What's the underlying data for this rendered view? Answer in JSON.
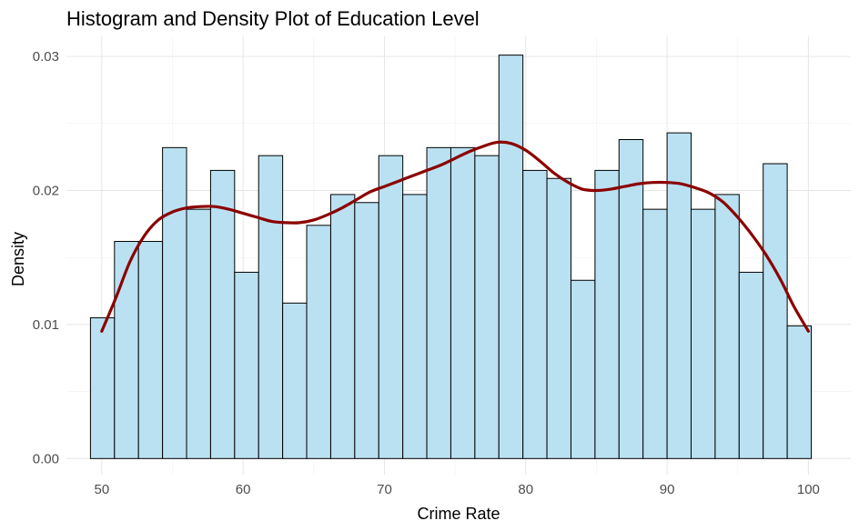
{
  "chart_data": {
    "type": "bar",
    "title": "Histogram and Density Plot of Education Level",
    "xlabel": "Crime Rate",
    "ylabel": "Density",
    "xlim": [
      47.5,
      103
    ],
    "ylim": [
      -0.0012,
      0.0315
    ],
    "x_ticks": [
      50,
      60,
      70,
      80,
      90,
      100
    ],
    "y_ticks": [
      0.0,
      0.01,
      0.02,
      0.03
    ],
    "x_tick_labels": [
      "50",
      "60",
      "70",
      "80",
      "90",
      "100"
    ],
    "y_tick_labels": [
      "0.00",
      "0.01",
      "0.02",
      "0.03"
    ],
    "grid": true,
    "legend": "none",
    "colors": {
      "bar_fill": "#bae1f2",
      "bar_outline": "#000000",
      "density_line": "#8b0000"
    },
    "series": [
      {
        "kind": "histogram",
        "bins": [
          {
            "x0": 49.2,
            "x1": 50.9,
            "value": 0.0105
          },
          {
            "x0": 50.9,
            "x1": 52.6,
            "value": 0.0162
          },
          {
            "x0": 52.6,
            "x1": 54.3,
            "value": 0.0162
          },
          {
            "x0": 54.3,
            "x1": 56.0,
            "value": 0.0232
          },
          {
            "x0": 56.0,
            "x1": 57.7,
            "value": 0.0186
          },
          {
            "x0": 57.7,
            "x1": 59.4,
            "value": 0.0215
          },
          {
            "x0": 59.4,
            "x1": 61.1,
            "value": 0.0139
          },
          {
            "x0": 61.1,
            "x1": 62.8,
            "value": 0.0226
          },
          {
            "x0": 62.8,
            "x1": 64.5,
            "value": 0.0116
          },
          {
            "x0": 64.5,
            "x1": 66.2,
            "value": 0.0174
          },
          {
            "x0": 66.2,
            "x1": 67.9,
            "value": 0.0197
          },
          {
            "x0": 67.9,
            "x1": 69.6,
            "value": 0.0191
          },
          {
            "x0": 69.6,
            "x1": 71.3,
            "value": 0.0226
          },
          {
            "x0": 71.3,
            "x1": 73.0,
            "value": 0.0197
          },
          {
            "x0": 73.0,
            "x1": 74.7,
            "value": 0.0232
          },
          {
            "x0": 74.7,
            "x1": 76.4,
            "value": 0.0232
          },
          {
            "x0": 76.4,
            "x1": 78.1,
            "value": 0.0226
          },
          {
            "x0": 78.1,
            "x1": 79.8,
            "value": 0.0301
          },
          {
            "x0": 79.8,
            "x1": 81.5,
            "value": 0.0215
          },
          {
            "x0": 81.5,
            "x1": 83.2,
            "value": 0.0209
          },
          {
            "x0": 83.2,
            "x1": 84.9,
            "value": 0.0133
          },
          {
            "x0": 84.9,
            "x1": 86.6,
            "value": 0.0215
          },
          {
            "x0": 86.6,
            "x1": 88.3,
            "value": 0.0238
          },
          {
            "x0": 88.3,
            "x1": 90.0,
            "value": 0.0186
          },
          {
            "x0": 90.0,
            "x1": 91.7,
            "value": 0.0243
          },
          {
            "x0": 91.7,
            "x1": 93.4,
            "value": 0.0186
          },
          {
            "x0": 93.4,
            "x1": 95.1,
            "value": 0.0197
          },
          {
            "x0": 95.1,
            "x1": 96.8,
            "value": 0.0139
          },
          {
            "x0": 96.8,
            "x1": 98.5,
            "value": 0.022
          },
          {
            "x0": 98.5,
            "x1": 100.2,
            "value": 0.0099
          }
        ]
      },
      {
        "kind": "density",
        "x": [
          50,
          51,
          52,
          53,
          54,
          55,
          56,
          57,
          58,
          59,
          60,
          61,
          62,
          63,
          64,
          65,
          66,
          67,
          68,
          69,
          70,
          71,
          72,
          73,
          74,
          75,
          76,
          77,
          78,
          79,
          80,
          81,
          82,
          83,
          84,
          85,
          86,
          87,
          88,
          89,
          90,
          91,
          92,
          93,
          94,
          95,
          96,
          97,
          98,
          99,
          100
        ],
        "y": [
          0.0095,
          0.012,
          0.0147,
          0.0166,
          0.0178,
          0.0184,
          0.0187,
          0.0188,
          0.0188,
          0.0186,
          0.0183,
          0.018,
          0.0177,
          0.0176,
          0.0176,
          0.0178,
          0.0182,
          0.0187,
          0.0193,
          0.0199,
          0.0203,
          0.0207,
          0.0211,
          0.0215,
          0.0219,
          0.0224,
          0.0229,
          0.0233,
          0.0236,
          0.0235,
          0.023,
          0.0222,
          0.0213,
          0.0206,
          0.0201,
          0.02,
          0.0201,
          0.0203,
          0.0205,
          0.0206,
          0.0206,
          0.0205,
          0.0202,
          0.0198,
          0.0191,
          0.018,
          0.0167,
          0.0152,
          0.0134,
          0.0113,
          0.0095
        ]
      }
    ]
  }
}
